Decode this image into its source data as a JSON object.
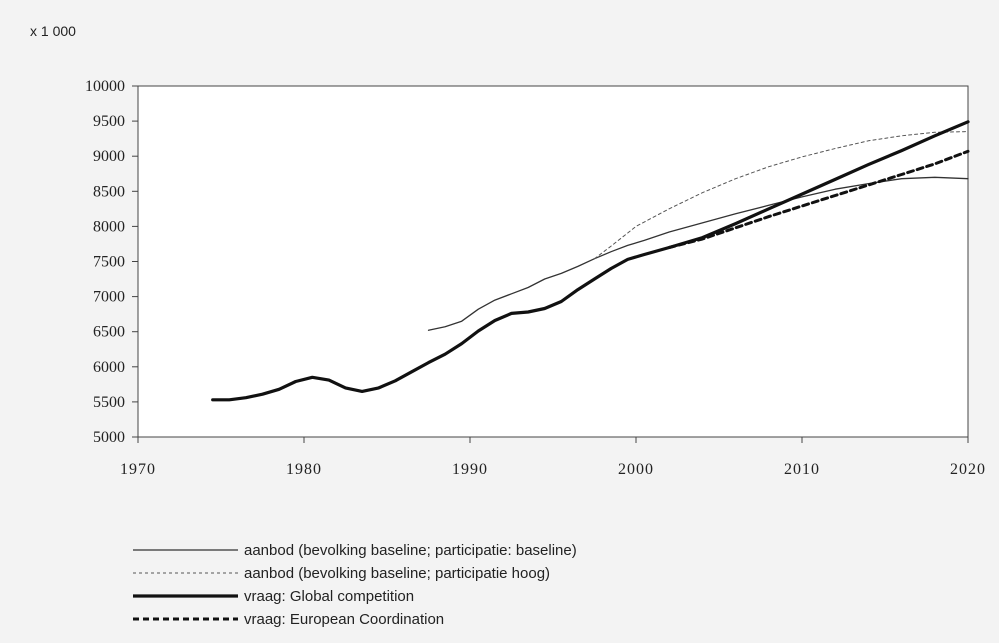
{
  "chart_data": {
    "type": "line",
    "unit_label": "x 1 000",
    "xlim": [
      1970,
      2020
    ],
    "ylim": [
      5000,
      10000
    ],
    "x_ticks": [
      1970,
      1980,
      1990,
      2000,
      2010,
      2020
    ],
    "y_ticks": [
      5000,
      5500,
      6000,
      6500,
      7000,
      7500,
      8000,
      8500,
      9000,
      9500,
      10000
    ],
    "grid": false,
    "legend_position": "bottom",
    "series": [
      {
        "name": "aanbod (bevolking baseline; participatie: baseline)",
        "style": "thin-solid",
        "color": "#333333",
        "x": [
          1987.5,
          1988.5,
          1989.5,
          1990.5,
          1991.5,
          1992.5,
          1993.5,
          1994.5,
          1995.5,
          1996.5,
          1997.5,
          1998.5,
          1999.5,
          2000.5,
          2002,
          2004,
          2006,
          2008,
          2010,
          2012,
          2014,
          2016,
          2018,
          2020
        ],
        "y": [
          6520,
          6570,
          6650,
          6820,
          6950,
          7040,
          7130,
          7250,
          7330,
          7430,
          7540,
          7640,
          7730,
          7800,
          7920,
          8050,
          8180,
          8300,
          8420,
          8530,
          8610,
          8680,
          8700,
          8680
        ]
      },
      {
        "name": "aanbod (bevolking baseline; participatie hoog)",
        "style": "thin-dashed",
        "color": "#555555",
        "x": [
          1997.5,
          1998.5,
          2000,
          2002,
          2004,
          2006,
          2008,
          2010,
          2012,
          2014,
          2016,
          2018,
          2020
        ],
        "y": [
          7540,
          7720,
          8000,
          8250,
          8480,
          8680,
          8850,
          8990,
          9110,
          9220,
          9290,
          9340,
          9350
        ]
      },
      {
        "name": "vraag: Global competition",
        "style": "thick-solid",
        "color": "#111111",
        "x": [
          1974.5,
          1975.5,
          1976.5,
          1977.5,
          1978.5,
          1979.5,
          1980.5,
          1981.5,
          1982.5,
          1983.5,
          1984.5,
          1985.5,
          1986.5,
          1987.5,
          1988.5,
          1989.5,
          1990.5,
          1991.5,
          1992.5,
          1993.5,
          1994.5,
          1995.5,
          1996.5,
          1997.5,
          1998.5,
          1999.5,
          2000.5,
          2002,
          2004,
          2006,
          2008,
          2010,
          2012,
          2014,
          2016,
          2018,
          2020
        ],
        "y": [
          5530,
          5530,
          5560,
          5610,
          5680,
          5790,
          5850,
          5810,
          5700,
          5650,
          5700,
          5800,
          5930,
          6060,
          6180,
          6330,
          6510,
          6660,
          6760,
          6780,
          6830,
          6930,
          7100,
          7250,
          7400,
          7530,
          7600,
          7700,
          7840,
          8040,
          8250,
          8460,
          8670,
          8880,
          9080,
          9290,
          9490
        ]
      },
      {
        "name": "vraag: European Coordination",
        "style": "thick-dashed",
        "color": "#111111",
        "x": [
          2002,
          2004,
          2006,
          2008,
          2010,
          2012,
          2014,
          2016,
          2018,
          2020
        ],
        "y": [
          7700,
          7820,
          7980,
          8140,
          8290,
          8440,
          8590,
          8740,
          8890,
          9070
        ]
      }
    ]
  }
}
